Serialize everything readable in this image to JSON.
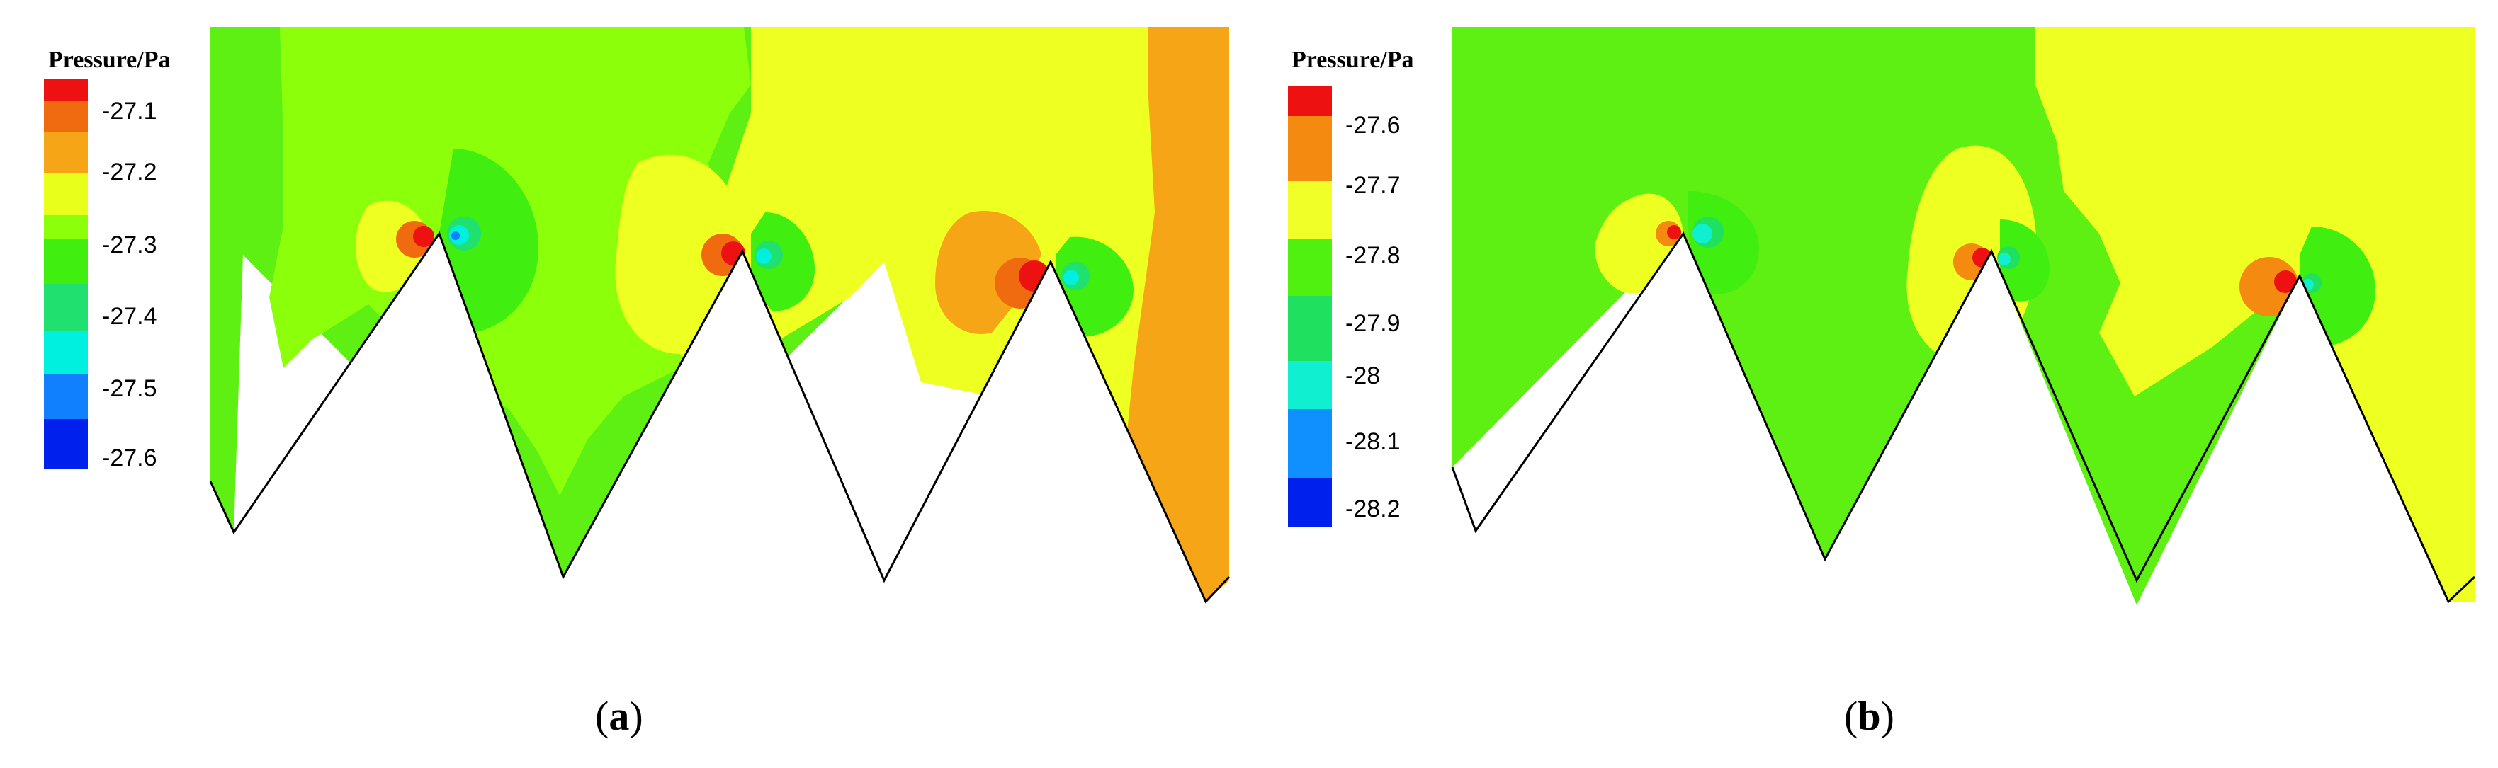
{
  "panels": [
    {
      "id": "a",
      "caption_letter": "a",
      "legend": {
        "title": "Pressure/Pa",
        "levels": [
          "-27.1",
          "-27.2",
          "-27.3",
          "-27.4",
          "-27.5",
          "-27.6"
        ],
        "colors": [
          "#ee1111",
          "#f06a10",
          "#f5a516",
          "#e8ff1c",
          "#8cff0a",
          "#40ee10",
          "#20e070",
          "#00f0e0",
          "#1080ff",
          "#0020ee"
        ]
      }
    },
    {
      "id": "b",
      "caption_letter": "b",
      "legend": {
        "title": "Pressure/Pa",
        "levels": [
          "-27.6",
          "-27.7",
          "-27.8",
          "-27.9",
          "-28",
          "-28.1",
          "-28.2"
        ],
        "colors": [
          "#ee1111",
          "#f58a10",
          "#f0ff28",
          "#50f010",
          "#20e060",
          "#10f0d0",
          "#1090ff",
          "#0020ee"
        ]
      }
    }
  ],
  "colors": {
    "green": "#5ef012",
    "light_green": "#8cff0a",
    "yellow": "#eeff22",
    "orange": "#f5a516",
    "dark_orange": "#f07a12",
    "red": "#ee1111",
    "cyan": "#00f0e0",
    "mint": "#20e080",
    "blue": "#1080ff"
  }
}
